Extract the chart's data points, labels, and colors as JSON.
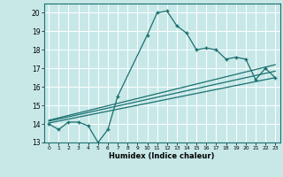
{
  "xlabel": "Humidex (Indice chaleur)",
  "xlim": [
    -0.5,
    23.5
  ],
  "ylim": [
    13,
    20.5
  ],
  "yticks": [
    13,
    14,
    15,
    16,
    17,
    18,
    19,
    20
  ],
  "xticks": [
    0,
    1,
    2,
    3,
    4,
    5,
    6,
    7,
    8,
    9,
    10,
    11,
    12,
    13,
    14,
    15,
    16,
    17,
    18,
    19,
    20,
    21,
    22,
    23
  ],
  "bg_color": "#c8e8e8",
  "grid_color": "#ffffff",
  "line_color": "#1a7070",
  "line1_x": [
    0,
    1,
    2,
    3,
    4,
    5,
    6,
    7,
    10,
    11,
    12,
    13,
    14,
    15,
    16,
    17,
    18,
    19,
    20,
    21,
    22,
    23
  ],
  "line1_y": [
    14.0,
    13.7,
    14.1,
    14.1,
    13.9,
    13.0,
    13.7,
    15.5,
    18.8,
    20.0,
    20.1,
    19.3,
    18.9,
    18.0,
    18.1,
    18.0,
    17.5,
    17.6,
    17.5,
    16.4,
    17.0,
    16.5
  ],
  "line2_x": [
    0,
    23
  ],
  "line2_y": [
    14.05,
    16.5
  ],
  "line3_x": [
    0,
    23
  ],
  "line3_y": [
    14.15,
    16.85
  ],
  "line4_x": [
    0,
    23
  ],
  "line4_y": [
    14.2,
    17.2
  ]
}
